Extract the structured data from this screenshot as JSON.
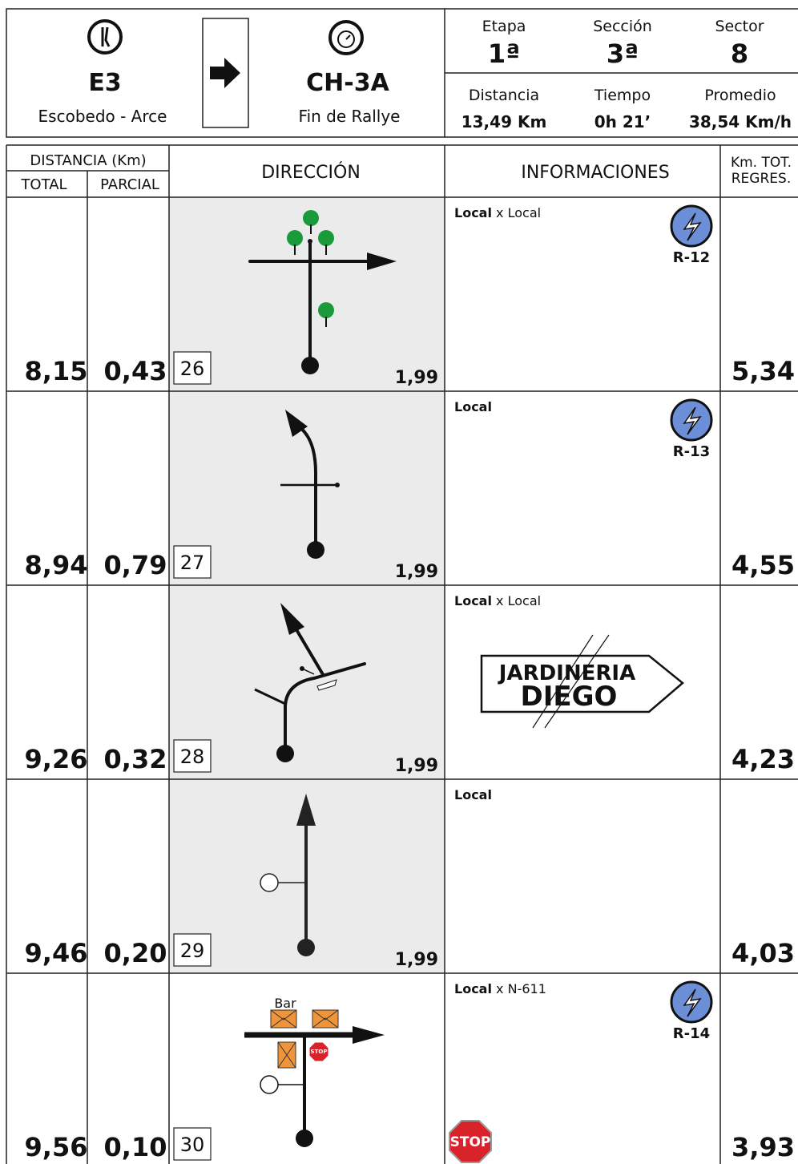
{
  "header": {
    "from_code": "E3",
    "from_name": "Escobedo - Arce",
    "to_code": "CH-3A",
    "to_name": "Fin de Rallye",
    "etapa_label": "Etapa",
    "etapa": "1ª",
    "seccion_label": "Sección",
    "seccion": "3ª",
    "sector_label": "Sector",
    "sector": "8",
    "distancia_label": "Distancia",
    "distancia": "13,49 Km",
    "tiempo_label": "Tiempo",
    "tiempo": "0h 21’",
    "promedio_label": "Promedio",
    "promedio": "38,54 Km/h"
  },
  "columns": {
    "distancia": "DISTANCIA (Km)",
    "total": "TOTAL",
    "parcial": "PARCIAL",
    "direccion": "DIRECCIÓN",
    "informaciones": "INFORMACIONES",
    "km_tot": [
      "Km. TOT.",
      "REGRES."
    ]
  },
  "rows": [
    {
      "total": "8,15",
      "parcial": "0,43",
      "number": "26",
      "caution": "1,99",
      "info_bold": "Local",
      "info_rest": "x Local",
      "sign": "R-12",
      "remaining": "5,34"
    },
    {
      "total": "8,94",
      "parcial": "0,79",
      "number": "27",
      "caution": "1,99",
      "info_bold": "Local",
      "sign": "R-13",
      "remaining": "4,55"
    },
    {
      "total": "9,26",
      "parcial": "0,32",
      "number": "28",
      "caution": "1,99",
      "info_bold": "Local",
      "info_rest": "x Local",
      "sign_text": [
        "JARDINERIA",
        "DIEGO"
      ],
      "remaining": "4,23"
    },
    {
      "total": "9,46",
      "parcial": "0,20",
      "number": "29",
      "caution": "1,99",
      "info_bold": "Local",
      "remaining": "4,03"
    },
    {
      "total": "9,56",
      "parcial": "0,10",
      "number": "30",
      "info_bold": "Local",
      "info_rest": "x N-611",
      "sign": "R-14",
      "place": "Bar",
      "stop": "STOP",
      "remaining": "3,93"
    }
  ]
}
